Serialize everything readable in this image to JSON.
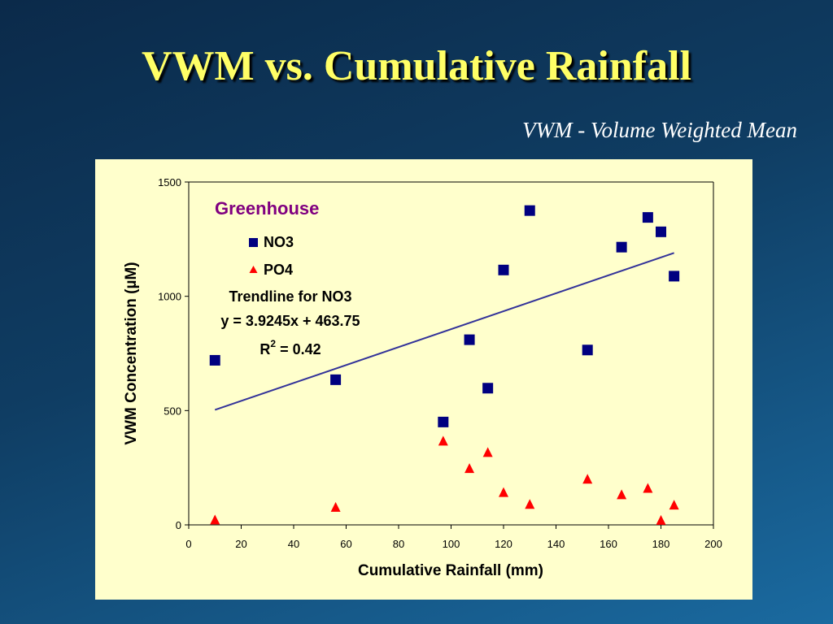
{
  "slide": {
    "title": "VWM vs. Cumulative Rainfall",
    "subtitle": "VWM - Volume Weighted Mean"
  },
  "colors": {
    "title": "#ffff66",
    "no3_marker": "#000080",
    "po4_marker": "#ff0000",
    "trendline": "#333399",
    "annotation_title": "#800080",
    "plot_background": "#ffffcc"
  },
  "chart_data": {
    "type": "scatter",
    "xlabel": "Cumulative Rainfall (mm)",
    "ylabel": "VWM Concentration (µM)",
    "xlim": [
      0,
      200
    ],
    "ylim": [
      0,
      1500
    ],
    "x_ticks": [
      "0",
      "20",
      "40",
      "60",
      "80",
      "100",
      "120",
      "140",
      "160",
      "180",
      "200"
    ],
    "y_ticks": [
      "0",
      "500",
      "1000",
      "1500"
    ],
    "grid": false,
    "series": [
      {
        "name": "NO3",
        "marker": "square",
        "points": [
          {
            "x": 10,
            "y": 720
          },
          {
            "x": 56,
            "y": 635
          },
          {
            "x": 97,
            "y": 450
          },
          {
            "x": 107,
            "y": 810
          },
          {
            "x": 114,
            "y": 598
          },
          {
            "x": 120,
            "y": 1115
          },
          {
            "x": 130,
            "y": 1375
          },
          {
            "x": 152,
            "y": 765
          },
          {
            "x": 165,
            "y": 1215
          },
          {
            "x": 175,
            "y": 1345
          },
          {
            "x": 180,
            "y": 1282
          },
          {
            "x": 185,
            "y": 1088
          }
        ]
      },
      {
        "name": "PO4",
        "marker": "triangle",
        "points": [
          {
            "x": 10,
            "y": 20
          },
          {
            "x": 56,
            "y": 75
          },
          {
            "x": 97,
            "y": 365
          },
          {
            "x": 107,
            "y": 245
          },
          {
            "x": 114,
            "y": 315
          },
          {
            "x": 120,
            "y": 140
          },
          {
            "x": 130,
            "y": 88
          },
          {
            "x": 152,
            "y": 198
          },
          {
            "x": 165,
            "y": 130
          },
          {
            "x": 175,
            "y": 158
          },
          {
            "x": 180,
            "y": 18
          },
          {
            "x": 185,
            "y": 85
          }
        ]
      }
    ],
    "trendline": {
      "series": "NO3",
      "slope": 3.9245,
      "intercept": 463.75,
      "x_range": [
        10,
        185
      ]
    },
    "annotations": {
      "title": "Greenhouse",
      "trendline_label": "Trendline for NO3",
      "equation": "y = 3.9245x + 463.75",
      "r2_prefix": "R",
      "r2_superscript": "2",
      "r2_value": " = 0.42"
    }
  }
}
